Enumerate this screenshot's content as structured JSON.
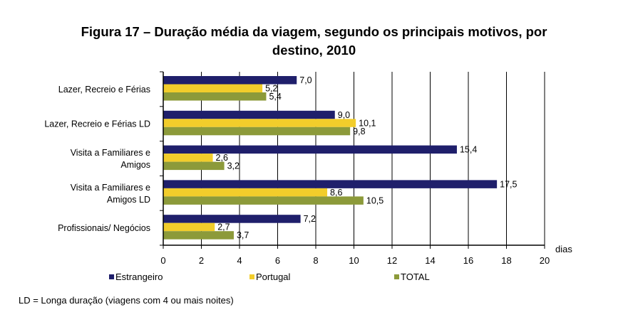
{
  "title_lines": [
    "Figura 17 – Duração média da viagem, segundo os principais motivos, por",
    "destino, 2010"
  ],
  "footnote": "LD = Longa duração (viagens com 4 ou mais noites)",
  "colors": {
    "Estrangeiro": "#1f1f6b",
    "Portugal": "#f2cd2b",
    "TOTAL": "#8c9a3a"
  },
  "chart_data": {
    "type": "bar",
    "orientation": "horizontal",
    "title": "Figura 17 – Duração média da viagem, segundo os principais motivos, por destino, 2010",
    "xlabel": "dias",
    "ylabel": "",
    "xlim": [
      0,
      20
    ],
    "xticks": [
      0,
      2,
      4,
      6,
      8,
      10,
      12,
      14,
      16,
      18,
      20
    ],
    "grid": true,
    "legend_position": "bottom",
    "categories": [
      [
        "Lazer, Recreio e Férias"
      ],
      [
        "Lazer, Recreio e Férias LD"
      ],
      [
        "Visita a Familiares e",
        "Amigos"
      ],
      [
        "Visita a Familiares e",
        "Amigos LD"
      ],
      [
        "Profissionais/ Negócios"
      ]
    ],
    "series": [
      {
        "name": "Estrangeiro",
        "values": [
          7.0,
          9.0,
          15.4,
          17.5,
          7.2
        ],
        "labels": [
          "7,0",
          "9,0",
          "15,4",
          "17,5",
          "7,2"
        ]
      },
      {
        "name": "Portugal",
        "values": [
          5.2,
          10.1,
          2.6,
          8.6,
          2.7
        ],
        "labels": [
          "5,2",
          "10,1",
          "2,6",
          "8,6",
          "2,7"
        ]
      },
      {
        "name": "TOTAL",
        "values": [
          5.4,
          9.8,
          3.2,
          10.5,
          3.7
        ],
        "labels": [
          "5,4",
          "9,8",
          "3,2",
          "10,5",
          "3,7"
        ]
      }
    ]
  }
}
